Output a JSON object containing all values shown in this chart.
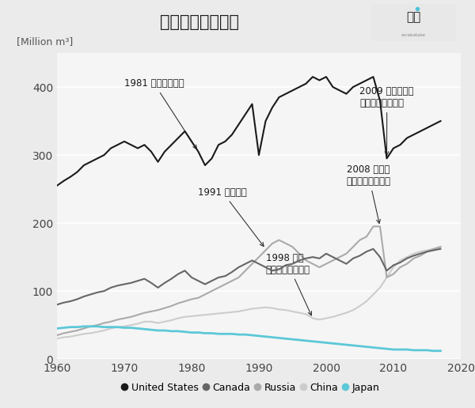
{
  "title": "丸太生産量の推移",
  "ylabel": "[Million m³]",
  "bg_color": "#ebebeb",
  "plot_bg_color": "#f5f5f5",
  "years": [
    1960,
    1961,
    1962,
    1963,
    1964,
    1965,
    1966,
    1967,
    1968,
    1969,
    1970,
    1971,
    1972,
    1973,
    1974,
    1975,
    1976,
    1977,
    1978,
    1979,
    1980,
    1981,
    1982,
    1983,
    1984,
    1985,
    1986,
    1987,
    1988,
    1989,
    1990,
    1991,
    1992,
    1993,
    1994,
    1995,
    1996,
    1997,
    1998,
    1999,
    2000,
    2001,
    2002,
    2003,
    2004,
    2005,
    2006,
    2007,
    2008,
    2009,
    2010,
    2011,
    2012,
    2013,
    2014,
    2015,
    2016,
    2017
  ],
  "united_states": [
    255,
    262,
    268,
    275,
    285,
    290,
    295,
    300,
    310,
    315,
    320,
    315,
    310,
    315,
    305,
    290,
    305,
    315,
    325,
    335,
    320,
    305,
    285,
    295,
    315,
    320,
    330,
    345,
    360,
    375,
    300,
    350,
    370,
    385,
    390,
    395,
    400,
    405,
    415,
    410,
    415,
    400,
    395,
    390,
    400,
    405,
    410,
    415,
    380,
    295,
    310,
    315,
    325,
    330,
    335,
    340,
    345,
    350
  ],
  "canada": [
    80,
    83,
    85,
    88,
    92,
    95,
    98,
    100,
    105,
    108,
    110,
    112,
    115,
    118,
    112,
    105,
    112,
    118,
    125,
    130,
    120,
    115,
    110,
    115,
    120,
    122,
    128,
    135,
    140,
    145,
    140,
    135,
    130,
    132,
    138,
    140,
    145,
    148,
    150,
    148,
    155,
    150,
    145,
    140,
    148,
    152,
    158,
    162,
    150,
    130,
    138,
    142,
    148,
    152,
    155,
    158,
    160,
    162
  ],
  "russia": [
    35,
    38,
    40,
    42,
    45,
    48,
    50,
    53,
    55,
    58,
    60,
    62,
    65,
    68,
    70,
    72,
    75,
    78,
    82,
    85,
    88,
    90,
    95,
    100,
    105,
    110,
    115,
    120,
    130,
    140,
    150,
    160,
    170,
    175,
    170,
    165,
    155,
    145,
    140,
    135,
    140,
    145,
    150,
    155,
    165,
    175,
    180,
    195,
    195,
    120,
    125,
    135,
    140,
    148,
    152,
    158,
    162,
    165
  ],
  "china": [
    30,
    32,
    33,
    35,
    37,
    38,
    40,
    42,
    45,
    47,
    48,
    50,
    52,
    55,
    55,
    53,
    55,
    57,
    60,
    62,
    63,
    64,
    65,
    66,
    67,
    68,
    69,
    70,
    72,
    74,
    75,
    76,
    75,
    73,
    72,
    70,
    68,
    66,
    60,
    58,
    60,
    62,
    65,
    68,
    72,
    78,
    85,
    95,
    105,
    120,
    135,
    145,
    150,
    155,
    158,
    160,
    162,
    165
  ],
  "japan": [
    45,
    46,
    47,
    47,
    48,
    48,
    48,
    47,
    47,
    47,
    46,
    46,
    45,
    44,
    43,
    42,
    42,
    41,
    41,
    40,
    39,
    39,
    38,
    38,
    37,
    37,
    37,
    36,
    36,
    35,
    34,
    33,
    32,
    31,
    30,
    29,
    28,
    27,
    26,
    25,
    24,
    23,
    22,
    21,
    20,
    19,
    18,
    17,
    16,
    15,
    14,
    14,
    14,
    13,
    13,
    13,
    12,
    12
  ],
  "us_color": "#1a1a1a",
  "canada_color": "#666666",
  "russia_color": "#aaaaaa",
  "china_color": "#cccccc",
  "japan_color": "#5bc8d8",
  "annotation_1_text": "1981 アメリカ不況",
  "annotation_2_text": "1991 ソ連崩壊",
  "annotation_3_text": "1998 中国\n天然資源保護対策",
  "annotation_4_text": "2008 ロシア\n丸太輸出関税値上",
  "annotation_5_text": "2009 アメリカ他\nリーマンショック",
  "legend_labels": [
    "United States",
    "Canada",
    "Russia",
    "China",
    "Japan"
  ],
  "ylim": [
    0,
    450
  ],
  "xlim": [
    1960,
    2020
  ]
}
